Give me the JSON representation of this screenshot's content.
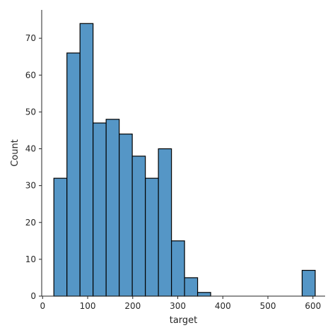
{
  "chart_data": {
    "type": "bar",
    "subtype": "histogram",
    "title": "",
    "xlabel": "target",
    "ylabel": "Count",
    "xlim": [
      -2,
      627
    ],
    "ylim": [
      0,
      77.7
    ],
    "xticks": [
      0,
      100,
      200,
      300,
      400,
      500,
      600
    ],
    "yticks": [
      0,
      10,
      20,
      30,
      40,
      50,
      60,
      70
    ],
    "grid": false,
    "legend": "none",
    "bar_color": "#5596c6",
    "edge_color": "#000000",
    "bins": [
      {
        "x0": 25,
        "x1": 54,
        "count": 32
      },
      {
        "x0": 54,
        "x1": 83,
        "count": 66
      },
      {
        "x0": 83,
        "x1": 112,
        "count": 74
      },
      {
        "x0": 112,
        "x1": 141,
        "count": 47
      },
      {
        "x0": 141,
        "x1": 170,
        "count": 48
      },
      {
        "x0": 170,
        "x1": 199,
        "count": 44
      },
      {
        "x0": 199,
        "x1": 228,
        "count": 38
      },
      {
        "x0": 228,
        "x1": 257,
        "count": 32
      },
      {
        "x0": 257,
        "x1": 286,
        "count": 40
      },
      {
        "x0": 286,
        "x1": 315,
        "count": 15
      },
      {
        "x0": 315,
        "x1": 344,
        "count": 5
      },
      {
        "x0": 344,
        "x1": 373,
        "count": 1
      },
      {
        "x0": 373,
        "x1": 402,
        "count": 0
      },
      {
        "x0": 402,
        "x1": 431,
        "count": 0
      },
      {
        "x0": 431,
        "x1": 460,
        "count": 0
      },
      {
        "x0": 460,
        "x1": 489,
        "count": 0
      },
      {
        "x0": 489,
        "x1": 518,
        "count": 0
      },
      {
        "x0": 518,
        "x1": 547,
        "count": 0
      },
      {
        "x0": 547,
        "x1": 576,
        "count": 0
      },
      {
        "x0": 576,
        "x1": 605,
        "count": 7
      }
    ]
  }
}
